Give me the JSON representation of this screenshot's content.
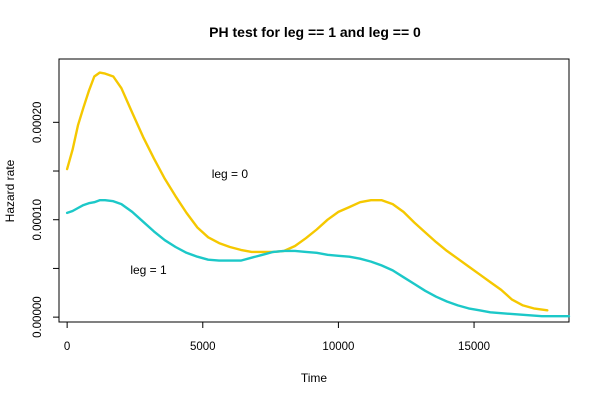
{
  "chart_data": {
    "type": "line",
    "title": "PH test for leg == 1 and leg == 0",
    "xlabel": "Time",
    "ylabel": "Hazard rate",
    "xlim": [
      -300,
      18500
    ],
    "ylim": [
      -5e-06,
      0.000265
    ],
    "xticks": [
      0,
      5000,
      10000,
      15000
    ],
    "xtick_labels": [
      "0",
      "5000",
      "10000",
      "15000"
    ],
    "yticks": [
      0,
      0.0001,
      0.0002
    ],
    "ytick_labels": [
      "0.00000",
      "0.00010",
      "0.00020"
    ],
    "ytick_minor": [
      5e-05,
      0.00015
    ],
    "grid": false,
    "legend": "none",
    "annotations": [
      {
        "text": "leg = 0",
        "x": 6000,
        "y": 0.000147
      },
      {
        "text": "leg = 1",
        "x": 3000,
        "y": 4.85e-05
      }
    ],
    "series": [
      {
        "color": "#F5C800",
        "x": [
          0,
          200,
          400,
          600,
          800,
          1000,
          1200,
          1400,
          1700,
          2000,
          2400,
          2800,
          3200,
          3600,
          4000,
          4400,
          4800,
          5200,
          5600,
          6000,
          6400,
          6800,
          7200,
          7600,
          8000,
          8400,
          8800,
          9200,
          9600,
          10000,
          10400,
          10800,
          11200,
          11600,
          12000,
          12400,
          12800,
          13200,
          13600,
          14000,
          14400,
          14800,
          15200,
          15600,
          16000,
          16400,
          16800,
          17200,
          17700
        ],
        "y": [
          0.000152,
          0.000172,
          0.000197,
          0.000215,
          0.000232,
          0.000247,
          0.000251,
          0.00025,
          0.000247,
          0.000235,
          0.00021,
          0.000185,
          0.000163,
          0.000142,
          0.000124,
          0.000107,
          9.2e-05,
          8.2e-05,
          7.6e-05,
          7.2e-05,
          6.9e-05,
          6.7e-05,
          6.7e-05,
          6.7e-05,
          6.8e-05,
          7.3e-05,
          8.1e-05,
          9e-05,
          0.0001,
          0.000108,
          0.000113,
          0.000118,
          0.00012,
          0.00012,
          0.000116,
          0.000108,
          9.7e-05,
          8.7e-05,
          7.7e-05,
          6.8e-05,
          6e-05,
          5.2e-05,
          4.4e-05,
          3.6e-05,
          2.8e-05,
          1.8e-05,
          1.2e-05,
          9e-06,
          7e-06
        ]
      },
      {
        "color": "#1CC8C8",
        "x": [
          0,
          200,
          400,
          600,
          800,
          1000,
          1200,
          1400,
          1700,
          2000,
          2400,
          2800,
          3200,
          3600,
          4000,
          4400,
          4800,
          5200,
          5600,
          6000,
          6400,
          6800,
          7200,
          7600,
          8000,
          8400,
          8800,
          9200,
          9600,
          10000,
          10400,
          10800,
          11200,
          11600,
          12000,
          12400,
          12800,
          13200,
          13600,
          14000,
          14400,
          14800,
          15200,
          15600,
          16000,
          16500,
          17000,
          17500,
          18000,
          18500
        ],
        "y": [
          0.000107,
          0.000109,
          0.000112,
          0.000115,
          0.000117,
          0.000118,
          0.00012,
          0.00012,
          0.000119,
          0.000116,
          0.000108,
          9.8e-05,
          8.8e-05,
          7.9e-05,
          7.2e-05,
          6.6e-05,
          6.2e-05,
          5.9e-05,
          5.8e-05,
          5.8e-05,
          5.8e-05,
          6.1e-05,
          6.4e-05,
          6.7e-05,
          6.8e-05,
          6.8e-05,
          6.7e-05,
          6.6e-05,
          6.4e-05,
          6.3e-05,
          6.2e-05,
          6e-05,
          5.7e-05,
          5.3e-05,
          4.8e-05,
          4.1e-05,
          3.4e-05,
          2.7e-05,
          2.1e-05,
          1.6e-05,
          1.2e-05,
          9e-06,
          7e-06,
          5e-06,
          4e-06,
          3e-06,
          2e-06,
          1e-06,
          1e-06,
          1e-06
        ]
      }
    ]
  }
}
